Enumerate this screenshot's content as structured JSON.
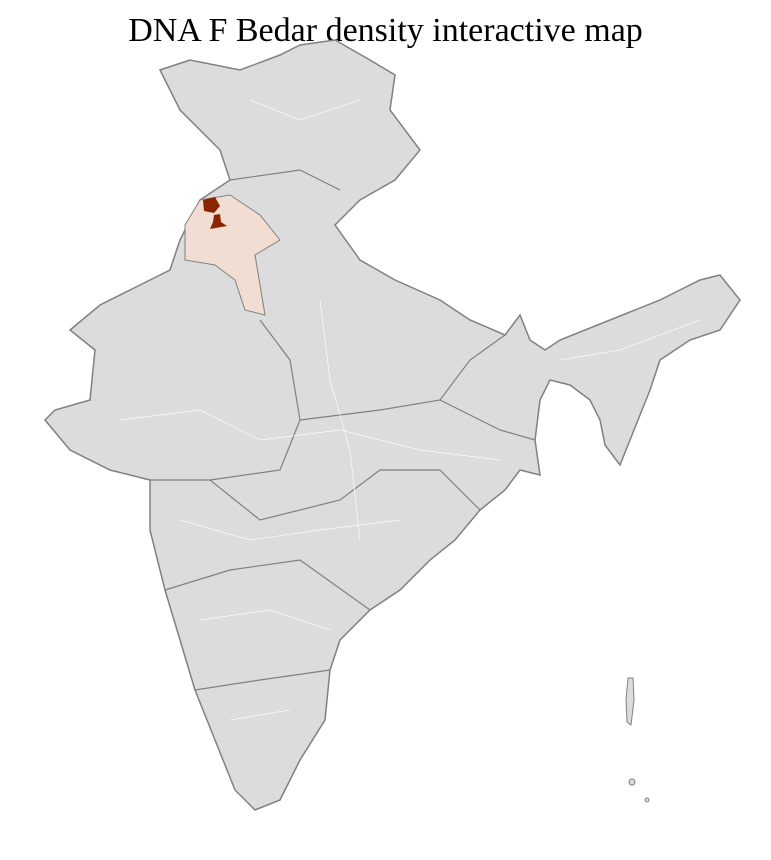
{
  "title": "DNA F Bedar density interactive map",
  "colors": {
    "base_fill": "#dcdcdc",
    "border": "#808080",
    "district_lines": "#ffffff",
    "low_density": "#f2ddd2",
    "high_density": "#8b2500"
  },
  "highlighted_regions": [
    "Punjab",
    "Haryana",
    "Chandigarh"
  ]
}
